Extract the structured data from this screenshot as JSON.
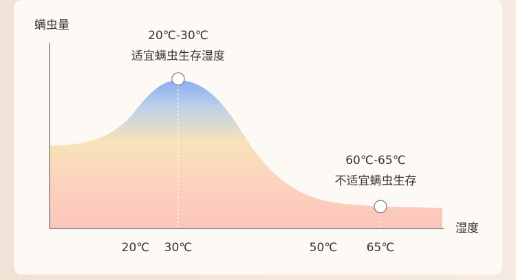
{
  "axis": {
    "y_label": "螨虫量",
    "x_label": "湿度",
    "x_ticks": [
      "20℃",
      "30℃",
      "50℃",
      "65℃"
    ]
  },
  "annotations": [
    {
      "range": "20℃-30℃",
      "text": "适宜螨虫生存湿度"
    },
    {
      "range": "60℃-65℃",
      "text": "不适宜螨虫生存"
    }
  ]
}
